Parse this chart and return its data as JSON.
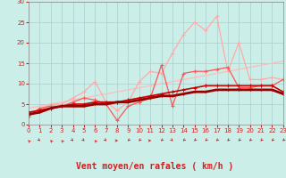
{
  "xlabel": "Vent moyen/en rafales ( km/h )",
  "xlim": [
    0,
    23
  ],
  "ylim": [
    0,
    30
  ],
  "xticks": [
    0,
    1,
    2,
    3,
    4,
    5,
    6,
    7,
    8,
    9,
    10,
    11,
    12,
    13,
    14,
    15,
    16,
    17,
    18,
    19,
    20,
    21,
    22,
    23
  ],
  "yticks": [
    0,
    5,
    10,
    15,
    20,
    25,
    30
  ],
  "bg_color": "#cceee8",
  "grid_color": "#aacccc",
  "series": [
    {
      "x": [
        0,
        1,
        2,
        3,
        4,
        5,
        6,
        7,
        8,
        9,
        10,
        11,
        12,
        13,
        14,
        15,
        16,
        17,
        18,
        19,
        20,
        21,
        22,
        23
      ],
      "y": [
        4.0,
        4.5,
        5.0,
        5.5,
        6.0,
        6.5,
        7.0,
        7.5,
        8.0,
        8.5,
        9.0,
        9.5,
        10.0,
        10.5,
        11.0,
        11.5,
        12.0,
        12.5,
        13.0,
        13.5,
        14.0,
        14.5,
        15.0,
        15.5
      ],
      "color": "#ffbbbb",
      "lw": 0.9,
      "marker": null
    },
    {
      "x": [
        0,
        1,
        2,
        3,
        4,
        5,
        6,
        7,
        8,
        9,
        10,
        11,
        12,
        13,
        14,
        15,
        16,
        17,
        18,
        19,
        20,
        21,
        22,
        23
      ],
      "y": [
        2.5,
        3.5,
        5.0,
        5.0,
        6.5,
        8.0,
        10.5,
        5.5,
        3.5,
        5.5,
        10.5,
        13.0,
        12.5,
        17.5,
        22.0,
        25.0,
        23.0,
        26.5,
        13.0,
        20.0,
        11.0,
        11.0,
        11.5,
        11.0
      ],
      "color": "#ffaaaa",
      "lw": 0.9,
      "marker": "+",
      "ms": 3
    },
    {
      "x": [
        0,
        1,
        2,
        3,
        4,
        5,
        6,
        7,
        8,
        9,
        10,
        11,
        12,
        13,
        14,
        15,
        16,
        17,
        18,
        19,
        20,
        21,
        22,
        23
      ],
      "y": [
        2.0,
        4.0,
        4.5,
        4.5,
        5.5,
        6.5,
        6.0,
        5.0,
        1.0,
        4.5,
        5.5,
        6.5,
        14.5,
        4.5,
        12.5,
        13.0,
        13.0,
        13.5,
        14.0,
        9.0,
        9.0,
        9.5,
        9.5,
        11.0
      ],
      "color": "#ff5555",
      "lw": 0.9,
      "marker": "+",
      "ms": 3
    },
    {
      "x": [
        0,
        1,
        2,
        3,
        4,
        5,
        6,
        7,
        8,
        9,
        10,
        11,
        12,
        13,
        14,
        15,
        16,
        17,
        18,
        19,
        20,
        21,
        22,
        23
      ],
      "y": [
        3.0,
        3.5,
        4.0,
        4.5,
        5.0,
        5.0,
        5.5,
        5.5,
        5.5,
        6.0,
        6.5,
        7.0,
        7.5,
        8.0,
        8.5,
        9.0,
        9.5,
        9.5,
        9.5,
        9.5,
        9.5,
        9.5,
        9.5,
        8.0
      ],
      "color": "#cc0000",
      "lw": 1.2,
      "marker": "+",
      "ms": 3
    },
    {
      "x": [
        0,
        1,
        2,
        3,
        4,
        5,
        6,
        7,
        8,
        9,
        10,
        11,
        12,
        13,
        14,
        15,
        16,
        17,
        18,
        19,
        20,
        21,
        22,
        23
      ],
      "y": [
        2.5,
        3.0,
        4.0,
        4.5,
        4.5,
        4.5,
        5.0,
        5.0,
        5.5,
        5.5,
        6.0,
        6.5,
        7.0,
        7.0,
        7.5,
        8.0,
        8.0,
        8.5,
        8.5,
        8.5,
        8.5,
        8.5,
        8.5,
        7.5
      ],
      "color": "#990000",
      "lw": 2.0,
      "marker": "+",
      "ms": 2
    }
  ],
  "arrow_directions": [
    225,
    45,
    225,
    225,
    45,
    45,
    225,
    45,
    90,
    315,
    315,
    90,
    315,
    45,
    315,
    315,
    315,
    315,
    315,
    315,
    315,
    315,
    315,
    315
  ],
  "red_color": "#cc2222",
  "tick_fontsize": 5,
  "xlabel_fontsize": 7
}
